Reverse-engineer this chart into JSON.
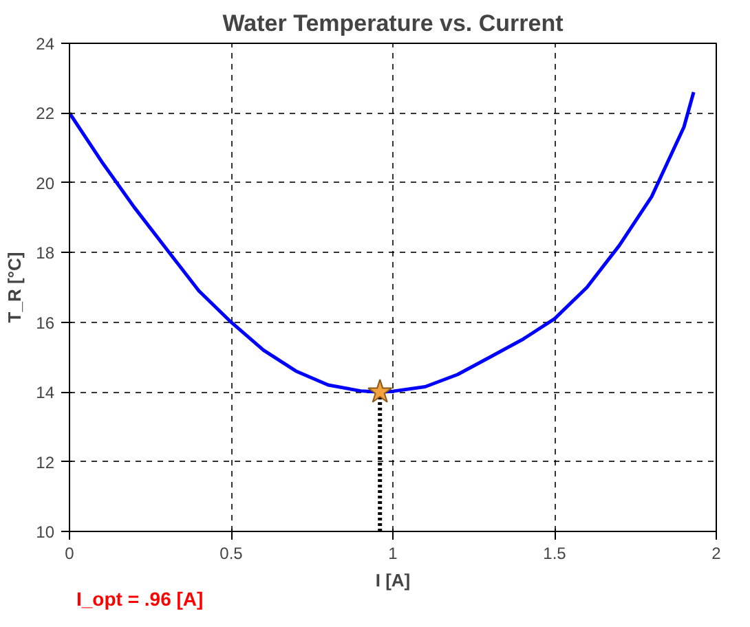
{
  "chart_data": {
    "type": "line",
    "title": "Water Temperature vs. Current",
    "xlabel": "I [A]",
    "ylabel": "T_R [°C]",
    "xlim": [
      0,
      2
    ],
    "ylim": [
      10,
      24
    ],
    "xticks": [
      0,
      0.5,
      1,
      1.5,
      2
    ],
    "yticks": [
      10,
      12,
      14,
      16,
      18,
      20,
      22,
      24
    ],
    "grid": true,
    "series": [
      {
        "color": "#0000ff",
        "x": [
          0,
          0.1,
          0.2,
          0.3,
          0.4,
          0.5,
          0.6,
          0.7,
          0.8,
          0.9,
          0.96,
          1.0,
          1.1,
          1.2,
          1.3,
          1.4,
          1.5,
          1.6,
          1.7,
          1.8,
          1.9,
          1.93
        ],
        "values": [
          22,
          20.6,
          19.3,
          18.1,
          16.9,
          16.0,
          15.2,
          14.6,
          14.2,
          14.03,
          14.0,
          14.02,
          14.15,
          14.5,
          15.0,
          15.5,
          16.1,
          17.0,
          18.2,
          19.6,
          21.6,
          22.6
        ]
      },
      {
        "type": "line",
        "color": "#000000",
        "line_style": "dotted",
        "x": [
          0.96,
          0.96
        ],
        "values": [
          10,
          14
        ]
      },
      {
        "type": "scatter",
        "color": "#f4a23c",
        "marker": "star",
        "x": [
          0.96
        ],
        "values": [
          14
        ]
      }
    ],
    "annotations": [
      "I_opt = .96 [A]"
    ]
  }
}
